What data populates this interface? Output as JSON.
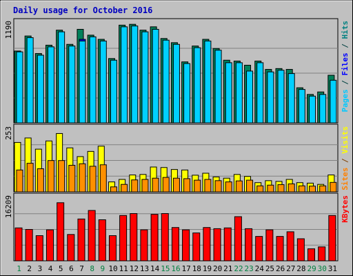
{
  "chart_data": {
    "type": "bar",
    "title": "Daily usage for October 2016",
    "categories": [
      "1",
      "2",
      "3",
      "4",
      "5",
      "6",
      "7",
      "8",
      "9",
      "10",
      "11",
      "12",
      "13",
      "14",
      "15",
      "16",
      "17",
      "18",
      "19",
      "20",
      "21",
      "22",
      "23",
      "24",
      "25",
      "26",
      "27",
      "28",
      "29",
      "30",
      "31"
    ],
    "weekend_days": [
      "1",
      "8",
      "9",
      "15",
      "16",
      "22",
      "23",
      "29",
      "30"
    ],
    "panels": [
      {
        "id": "hits-files-pages",
        "ymax_label": "1190",
        "ymax": 1190,
        "side_label_parts": [
          {
            "text": "Pages",
            "color": "#00c8ff"
          },
          {
            "text": " / ",
            "color": "#004040"
          },
          {
            "text": "Files",
            "color": "#0000ff"
          },
          {
            "text": " / ",
            "color": "#004040"
          },
          {
            "text": "Hits",
            "color": "#008080"
          }
        ],
        "series": [
          {
            "name": "Hits",
            "color": "#00805a",
            "values": [
              860,
              1040,
              830,
              930,
              1110,
              940,
              1120,
              1050,
              1000,
              770,
              1170,
              1180,
              1110,
              1150,
              1010,
              960,
              730,
              920,
              1000,
              890,
              750,
              740,
              690,
              740,
              640,
              650,
              640,
              420,
              340,
              370,
              570
            ]
          },
          {
            "name": "Files",
            "color": "#0000ff",
            "values": [
              0,
              0,
              0,
              0,
              0,
              0,
              1000,
              0,
              0,
              0,
              0,
              0,
              0,
              0,
              0,
              0,
              0,
              0,
              0,
              0,
              0,
              0,
              0,
              0,
              0,
              0,
              0,
              0,
              0,
              0,
              0
            ]
          },
          {
            "name": "Pages",
            "color": "#00d0ff",
            "values": [
              850,
              1020,
              810,
              910,
              1090,
              920,
              980,
              1030,
              980,
              750,
              1150,
              1160,
              1090,
              1120,
              990,
              940,
              710,
              900,
              980,
              870,
              720,
              720,
              620,
              720,
              610,
              630,
              590,
              400,
              320,
              340,
              510
            ]
          }
        ]
      },
      {
        "id": "visits-sites",
        "ymax_label": "253",
        "ymax": 253,
        "side_label_parts": [
          {
            "text": "Sites",
            "color": "#ff8000"
          },
          {
            "text": " / ",
            "color": "#804000"
          },
          {
            "text": "Visits",
            "color": "#ffff00"
          }
        ],
        "series": [
          {
            "name": "Visits",
            "color": "#ffff00",
            "values": [
              199,
              217,
              172,
              205,
              235,
              177,
              142,
              163,
              184,
              40,
              50,
              68,
              70,
              100,
              98,
              90,
              88,
              67,
              75,
              60,
              55,
              70,
              62,
              37,
              45,
              42,
              50,
              37,
              35,
              30,
              68
            ]
          },
          {
            "name": "Sites",
            "color": "#ff9000",
            "values": [
              88,
              115,
              93,
              126,
              126,
              107,
              113,
              103,
              109,
              20,
              30,
              48,
              50,
              55,
              58,
              55,
              53,
              47,
              50,
              45,
              40,
              44,
              47,
              24,
              27,
              29,
              32,
              24,
              23,
              24,
              38
            ]
          }
        ]
      },
      {
        "id": "kbytes",
        "ymax_label": "16209",
        "ymax": 16209,
        "side_label_parts": [
          {
            "text": "KBytes",
            "color": "#ff0000"
          }
        ],
        "series": [
          {
            "name": "KBytes",
            "color": "#ff0000",
            "values": [
              8500,
              8100,
              6500,
              8000,
              15000,
              6800,
              10800,
              13000,
              10600,
              6500,
              11700,
              12200,
              8000,
              12000,
              12200,
              8600,
              8000,
              7200,
              8600,
              8300,
              8500,
              11400,
              8300,
              6300,
              8000,
              6300,
              7500,
              5700,
              3100,
              3600,
              11700
            ]
          }
        ]
      }
    ]
  }
}
